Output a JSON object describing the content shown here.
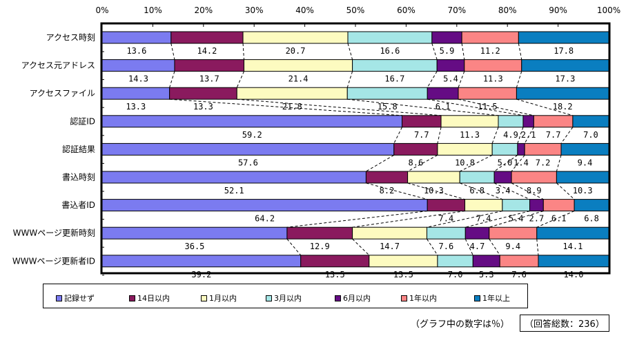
{
  "chart_data": {
    "type": "bar",
    "orientation": "horizontal",
    "stacked": "percent",
    "title": "",
    "xlabel": "",
    "ylabel": "",
    "xlim": [
      0,
      100
    ],
    "x_ticks": [
      "0%",
      "10%",
      "20%",
      "30%",
      "40%",
      "50%",
      "60%",
      "70%",
      "80%",
      "90%",
      "100%"
    ],
    "grid": false,
    "legend_position": "bottom",
    "categories": [
      "アクセス時刻",
      "アクセス元アドレス",
      "アクセスファイル",
      "認証ID",
      "認証結果",
      "書込時刻",
      "書込者ID",
      "WWWページ更新時刻",
      "WWWページ更新者ID"
    ],
    "series": [
      {
        "name": "記録せず",
        "color": "#7b7bf0",
        "values": [
          13.6,
          14.3,
          13.3,
          59.2,
          57.6,
          52.1,
          64.2,
          36.5,
          39.2
        ]
      },
      {
        "name": "14日以内",
        "color": "#8a1a5e",
        "values": [
          14.2,
          13.7,
          13.3,
          7.7,
          8.6,
          8.2,
          7.4,
          12.9,
          13.5
        ]
      },
      {
        "name": "1月以内",
        "color": "#fdfbc0",
        "values": [
          20.7,
          21.4,
          21.8,
          11.3,
          10.8,
          10.3,
          7.4,
          14.7,
          13.5
        ]
      },
      {
        "name": "3月以内",
        "color": "#a5e6e6",
        "values": [
          16.6,
          16.7,
          15.8,
          4.9,
          5.0,
          6.8,
          5.4,
          7.6,
          7.0
        ]
      },
      {
        "name": "6月以内",
        "color": "#650c84",
        "values": [
          5.9,
          5.4,
          6.1,
          2.1,
          1.4,
          3.4,
          2.7,
          4.7,
          5.3
        ]
      },
      {
        "name": "1年以内",
        "color": "#fb8585",
        "values": [
          11.2,
          11.3,
          11.5,
          7.7,
          7.2,
          8.9,
          6.1,
          9.4,
          7.6
        ]
      },
      {
        "name": "1年以上",
        "color": "#0a7ec0",
        "values": [
          17.8,
          17.3,
          18.2,
          7.0,
          9.4,
          10.3,
          6.8,
          14.1,
          14.0
        ]
      }
    ]
  },
  "notes": {
    "unit_note": "（グラフ中の数字は％）",
    "total_note": "（回答総数：236）"
  }
}
